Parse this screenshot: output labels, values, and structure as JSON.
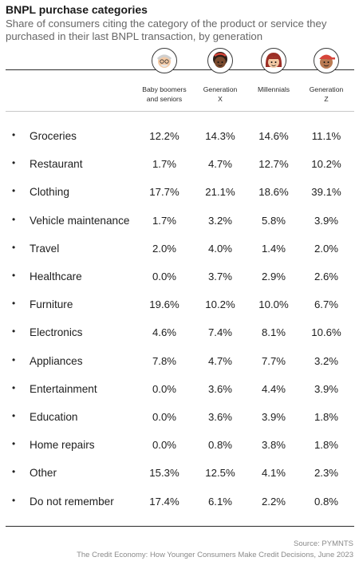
{
  "title": "BNPL purchase categories",
  "subtitle": "Share of consumers citing the category of the product or service they purchased in their last BNPL transaction, by generation",
  "icons": [
    "elderly-person-icon",
    "woman-gen-x-icon",
    "woman-millennial-icon",
    "person-gen-z-icon"
  ],
  "colors": {
    "rule": "#2a2a2a",
    "icon_red": "#d6453a",
    "skin_light": "#f3c9a4",
    "skin_mid": "#b97a52",
    "skin_dark": "#7a4a2e"
  },
  "columns": [
    [
      "Baby boomers",
      "and seniors"
    ],
    [
      "Generation",
      "X"
    ],
    [
      "Millennials"
    ],
    [
      "Generation",
      "Z"
    ]
  ],
  "chart_data": {
    "type": "table",
    "title": "BNPL purchase categories",
    "subtitle": "Share of consumers citing the category of the product or service they purchased in their last BNPL transaction, by generation",
    "columns": [
      "Baby boomers and seniors",
      "Generation X",
      "Millennials",
      "Generation Z"
    ],
    "rows": [
      {
        "category": "Groceries",
        "values": [
          "12.2%",
          "14.3%",
          "14.6%",
          "11.1%"
        ]
      },
      {
        "category": "Restaurant",
        "values": [
          "1.7%",
          "4.7%",
          "12.7%",
          "10.2%"
        ]
      },
      {
        "category": "Clothing",
        "values": [
          "17.7%",
          "21.1%",
          "18.6%",
          "39.1%"
        ]
      },
      {
        "category": "Vehicle maintenance",
        "values": [
          "1.7%",
          "3.2%",
          "5.8%",
          "3.9%"
        ]
      },
      {
        "category": "Travel",
        "values": [
          "2.0%",
          "4.0%",
          "1.4%",
          "2.0%"
        ]
      },
      {
        "category": "Healthcare",
        "values": [
          "0.0%",
          "3.7%",
          "2.9%",
          "2.6%"
        ]
      },
      {
        "category": "Furniture",
        "values": [
          "19.6%",
          "10.2%",
          "10.0%",
          "6.7%"
        ]
      },
      {
        "category": "Electronics",
        "values": [
          "4.6%",
          "7.4%",
          "8.1%",
          "10.6%"
        ]
      },
      {
        "category": "Appliances",
        "values": [
          "7.8%",
          "4.7%",
          "7.7%",
          "3.2%"
        ]
      },
      {
        "category": "Entertainment",
        "values": [
          "0.0%",
          "3.6%",
          "4.4%",
          "3.9%"
        ]
      },
      {
        "category": "Education",
        "values": [
          "0.0%",
          "3.6%",
          "3.9%",
          "1.8%"
        ]
      },
      {
        "category": "Home repairs",
        "values": [
          "0.0%",
          "0.8%",
          "3.8%",
          "1.8%"
        ]
      },
      {
        "category": "Other",
        "values": [
          "15.3%",
          "12.5%",
          "4.1%",
          "2.3%"
        ]
      },
      {
        "category": "Do not remember",
        "values": [
          "17.4%",
          "6.1%",
          "2.2%",
          "0.8%"
        ]
      }
    ]
  },
  "bullet": "•",
  "source": "Source: PYMNTS",
  "footer": "The Credit Economy: How Younger Consumers Make Credit Decisions, June 2023"
}
